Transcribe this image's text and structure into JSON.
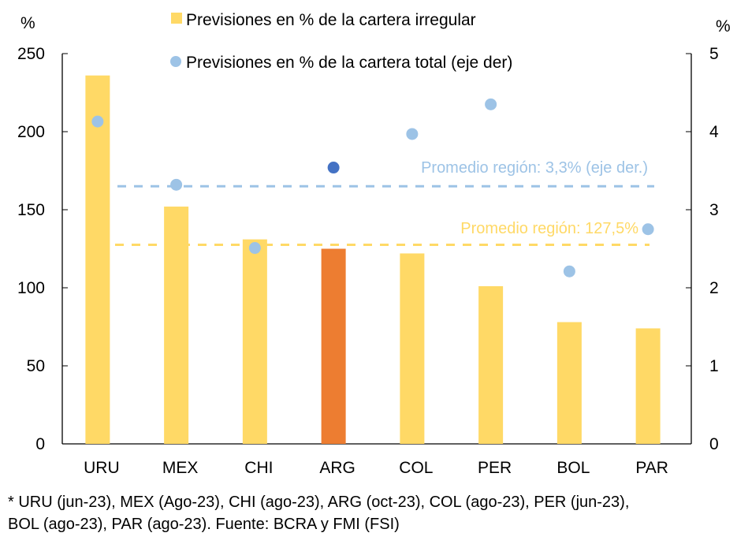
{
  "chart_data": {
    "type": "bar",
    "title": "",
    "categories": [
      "URU",
      "MEX",
      "CHI",
      "ARG",
      "COL",
      "PER",
      "BOL",
      "PAR"
    ],
    "highlight_category": "ARG",
    "series": [
      {
        "name": "Previsiones en % de la cartera irregular",
        "type": "bar",
        "axis": "left",
        "color": "#FFD966",
        "highlight_color": "#ED7D31",
        "values": [
          236,
          152,
          131,
          125,
          122,
          101,
          78,
          74
        ]
      },
      {
        "name": "Previsiones en % de la cartera total (eje der)",
        "type": "scatter",
        "axis": "right",
        "color": "#9DC3E6",
        "highlight_color": "#4472C4",
        "values": [
          4.13,
          3.32,
          2.51,
          3.54,
          3.97,
          4.35,
          2.21,
          2.75
        ]
      }
    ],
    "left_axis": {
      "label": "%",
      "ylim": [
        0,
        250
      ],
      "ticks": [
        0,
        50,
        100,
        150,
        200,
        250
      ]
    },
    "right_axis": {
      "label": "%",
      "ylim": [
        0,
        5
      ],
      "ticks": [
        0,
        1,
        2,
        3,
        4,
        5
      ]
    },
    "reference_lines": [
      {
        "name": "Promedio región (eje der.)",
        "axis": "right",
        "value": 3.3,
        "color": "#9DC3E6",
        "label": "Promedio región: 3,3% (eje der.)"
      },
      {
        "name": "Promedio región",
        "axis": "left",
        "value": 127.5,
        "color": "#FFD966",
        "label": "Promedio región: 127,5%"
      }
    ],
    "legend": {
      "placement": "top-center",
      "entries": [
        {
          "label": "Previsiones en % de la cartera irregular",
          "marker": "square",
          "color": "#FFD966"
        },
        {
          "label": "Previsiones en % de la cartera total (eje der)",
          "marker": "circle",
          "color": "#9DC3E6"
        }
      ]
    },
    "grid": false
  },
  "footnote": {
    "line1": "* URU (jun-23), MEX (Ago-23), CHI (ago-23), ARG (oct-23), COL (ago-23), PER (jun-23),",
    "line2": "BOL (ago-23), PAR (ago-23). Fuente: BCRA y FMI (FSI)"
  }
}
